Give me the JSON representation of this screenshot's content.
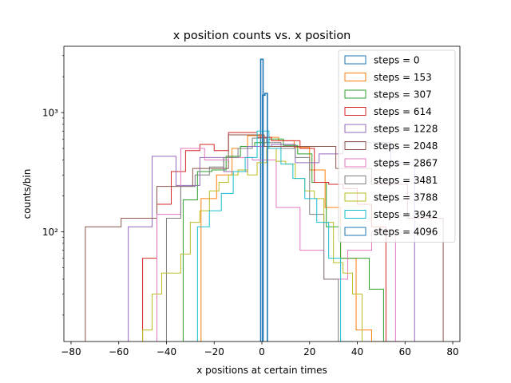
{
  "chart_data": {
    "type": "histogram-step",
    "title": "x position counts vs. x position",
    "xlabel": "x positions at certain times",
    "ylabel": "counts/bin",
    "yscale": "log",
    "xlim": [
      -83,
      83
    ],
    "ylim": [
      12,
      3600
    ],
    "xticks": [
      -80,
      -60,
      -40,
      -20,
      0,
      20,
      40,
      60,
      80
    ],
    "xtick_labels": [
      "−80",
      "−60",
      "−40",
      "−20",
      "0",
      "20",
      "40",
      "60",
      "80"
    ],
    "yticks": [
      100,
      1000
    ],
    "ytick_labels": [
      "10²",
      "10³"
    ],
    "legend_position": "top-right",
    "series": [
      {
        "name": "steps = 0",
        "color": "#1f77b4",
        "edges": [
          -0.5,
          0.5
        ],
        "counts": [
          2800
        ]
      },
      {
        "name": "steps = 153",
        "color": "#ff7f0e",
        "edges": [
          -32,
          -25.5,
          -19,
          -12.5,
          -6,
          0.5,
          7,
          13.5,
          20,
          26.5,
          33,
          39.5,
          46,
          52.5
        ],
        "counts": [
          12,
          190,
          300,
          500,
          640,
          620,
          580,
          510,
          330,
          160,
          60,
          15,
          12
        ]
      },
      {
        "name": "steps = 307",
        "color": "#2ca02c",
        "edges": [
          -33,
          -27,
          -21,
          -15,
          -9,
          -3,
          3,
          9,
          15,
          21,
          27,
          33,
          39,
          45,
          51
        ],
        "counts": [
          185,
          320,
          330,
          430,
          520,
          560,
          600,
          530,
          450,
          260,
          110,
          60,
          60,
          33
        ]
      },
      {
        "name": "steps = 614",
        "color": "#d62728",
        "edges": [
          -50,
          -44,
          -38,
          -32,
          -26,
          -20,
          -14,
          -8,
          -2,
          4,
          10,
          16,
          22,
          28,
          34,
          40,
          46,
          52,
          58
        ],
        "counts": [
          60,
          170,
          320,
          480,
          540,
          480,
          680,
          680,
          620,
          580,
          580,
          500,
          260,
          250,
          230,
          170,
          110,
          12
        ]
      },
      {
        "name": "steps = 1228",
        "color": "#9467bd",
        "edges": [
          -56,
          -46,
          -36,
          -26,
          -16,
          -6,
          4,
          14,
          24,
          34,
          44,
          54,
          64
        ],
        "counts": [
          110,
          430,
          245,
          420,
          320,
          520,
          540,
          380,
          450,
          560,
          560,
          380
        ]
      },
      {
        "name": "steps = 2048",
        "color": "#8c564b",
        "edges": [
          -74,
          -59,
          -44,
          -29,
          -14,
          1,
          16,
          31,
          46,
          61,
          76
        ],
        "counts": [
          110,
          130,
          240,
          340,
          650,
          520,
          520,
          340,
          250,
          130
        ]
      },
      {
        "name": "steps = 2867",
        "color": "#e377c2",
        "edges": [
          -44,
          -34,
          -24,
          -14,
          -4,
          6,
          16,
          26,
          36,
          46,
          56
        ],
        "counts": [
          140,
          500,
          400,
          420,
          400,
          160,
          70,
          40,
          70,
          100
        ]
      },
      {
        "name": "steps = 3481",
        "color": "#7f7f7f",
        "edges": [
          -40,
          -34,
          -28,
          -22,
          -16,
          -10,
          -4,
          2,
          8,
          14,
          20,
          26,
          32
        ],
        "counts": [
          130,
          240,
          300,
          350,
          420,
          500,
          610,
          560,
          500,
          420,
          140,
          40
        ]
      },
      {
        "name": "steps = 3788",
        "color": "#bcbd22",
        "edges": [
          -50,
          -46,
          -42,
          -38,
          -34,
          -30,
          -26,
          -22,
          -18,
          -14,
          -10,
          -6,
          -2,
          2,
          6,
          10,
          14,
          18,
          22,
          26,
          30,
          34,
          38,
          42
        ],
        "counts": [
          15,
          30,
          45,
          45,
          65,
          120,
          150,
          220,
          260,
          300,
          330,
          300,
          380,
          500,
          390,
          370,
          280,
          220,
          190,
          120,
          55,
          45,
          30
        ]
      },
      {
        "name": "steps = 3942",
        "color": "#17becf",
        "edges": [
          -32,
          -27,
          -22,
          -17,
          -12,
          -7,
          -2,
          3,
          8,
          13,
          18,
          23,
          28,
          33,
          38
        ],
        "counts": [
          12,
          110,
          150,
          210,
          320,
          420,
          700,
          500,
          370,
          280,
          190,
          120,
          60,
          12
        ]
      },
      {
        "name": "steps = 4096",
        "color": "#1f77b4",
        "edges": [
          0.3,
          1.3,
          2.3
        ],
        "counts": [
          1400,
          1450
        ]
      }
    ]
  }
}
